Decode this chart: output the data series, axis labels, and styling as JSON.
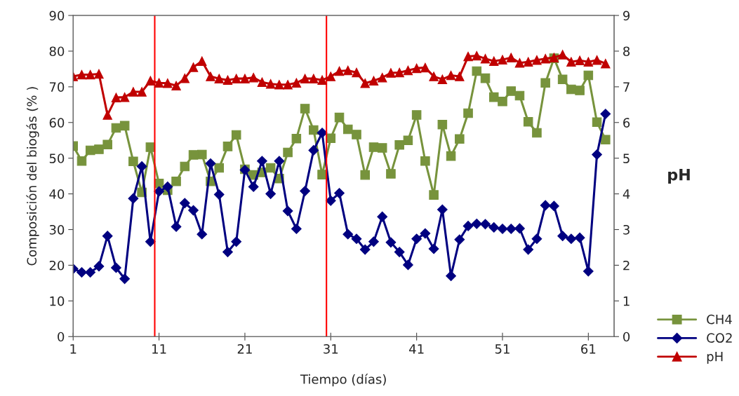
{
  "chart_data": {
    "type": "line",
    "xlabel": "Tiempo (días)",
    "ylabel": "Composición del biogás (% )",
    "y2label": "pH",
    "x": [
      1,
      2,
      3,
      4,
      5,
      6,
      7,
      8,
      9,
      10,
      11,
      12,
      13,
      14,
      15,
      16,
      17,
      18,
      19,
      20,
      21,
      22,
      23,
      24,
      25,
      26,
      27,
      28,
      29,
      30,
      31,
      32,
      33,
      34,
      35,
      36,
      37,
      38,
      39,
      40,
      41,
      42,
      43,
      44,
      45,
      46,
      47,
      48,
      49,
      50,
      51,
      52,
      53,
      54,
      55,
      56,
      57,
      58,
      59,
      60,
      61,
      62,
      63
    ],
    "series": [
      {
        "name": "CH4",
        "color": "#77933c",
        "marker": "square",
        "values": [
          53.4,
          49.2,
          52.2,
          52.5,
          53.8,
          58.5,
          59.1,
          49.1,
          40.4,
          53.1,
          42.9,
          41.0,
          43.5,
          47.7,
          50.9,
          51.0,
          43.5,
          47.3,
          53.3,
          56.5,
          46.9,
          45.3,
          46.0,
          47.3,
          44.3,
          51.6,
          55.5,
          63.9,
          57.9,
          45.4,
          55.6,
          61.4,
          58.1,
          56.6,
          45.3,
          53.1,
          52.9,
          45.6,
          53.7,
          55.0,
          62.1,
          49.2,
          39.7,
          59.4,
          50.6,
          55.4,
          62.6,
          74.4,
          72.4,
          67.1,
          65.9,
          68.8,
          67.5,
          60.2,
          57.1,
          71.1,
          78.0,
          72.1,
          69.3,
          69.0,
          73.2,
          60.1,
          55.2
        ]
      },
      {
        "name": "CO2",
        "color": "#000080",
        "marker": "diamond",
        "values": [
          19.0,
          18.0,
          18.0,
          19.7,
          28.2,
          19.3,
          16.2,
          38.7,
          47.7,
          26.6,
          40.7,
          42.0,
          30.8,
          37.4,
          35.4,
          28.7,
          48.5,
          39.8,
          23.7,
          26.6,
          46.7,
          42.0,
          49.2,
          40.0,
          49.2,
          35.2,
          30.2,
          40.8,
          52.2,
          57.1,
          38.1,
          40.2,
          28.7,
          27.4,
          24.4,
          26.6,
          33.6,
          26.4,
          23.7,
          20.1,
          27.4,
          28.9,
          24.6,
          35.6,
          17.0,
          27.2,
          31.0,
          31.6,
          31.5,
          30.6,
          30.2,
          30.2,
          30.3,
          24.4,
          27.4,
          36.8,
          36.6,
          28.2,
          27.4,
          27.7,
          18.3,
          51.0,
          62.4
        ]
      },
      {
        "name": "pH",
        "color": "#c00000",
        "marker": "triangle",
        "axis": "y2",
        "values": [
          7.29,
          7.34,
          7.34,
          7.36,
          6.21,
          6.7,
          6.71,
          6.86,
          6.86,
          7.17,
          7.11,
          7.1,
          7.03,
          7.24,
          7.55,
          7.72,
          7.29,
          7.23,
          7.19,
          7.23,
          7.23,
          7.26,
          7.13,
          7.08,
          7.06,
          7.06,
          7.11,
          7.23,
          7.23,
          7.19,
          7.29,
          7.44,
          7.46,
          7.4,
          7.1,
          7.17,
          7.26,
          7.39,
          7.4,
          7.46,
          7.52,
          7.54,
          7.29,
          7.21,
          7.32,
          7.29,
          7.85,
          7.87,
          7.79,
          7.72,
          7.76,
          7.82,
          7.67,
          7.7,
          7.75,
          7.79,
          7.82,
          7.9,
          7.7,
          7.74,
          7.7,
          7.75,
          7.65
        ]
      }
    ],
    "xlim": [
      1,
      64
    ],
    "xticks": [
      1,
      11,
      21,
      31,
      41,
      51,
      61
    ],
    "ylim": [
      0,
      90
    ],
    "yticks": [
      0,
      10,
      20,
      30,
      40,
      50,
      60,
      70,
      80,
      90
    ],
    "y2lim": [
      0,
      9
    ],
    "y2ticks": [
      0,
      1,
      2,
      3,
      4,
      5,
      6,
      7,
      8,
      9
    ],
    "ref_lines": [
      {
        "axis": "x",
        "value": 10.5,
        "color": "#ff0000"
      },
      {
        "axis": "x",
        "value": 30.5,
        "color": "#ff0000"
      }
    ],
    "grid": false,
    "legend": "bottom right",
    "line_style": "solid"
  }
}
